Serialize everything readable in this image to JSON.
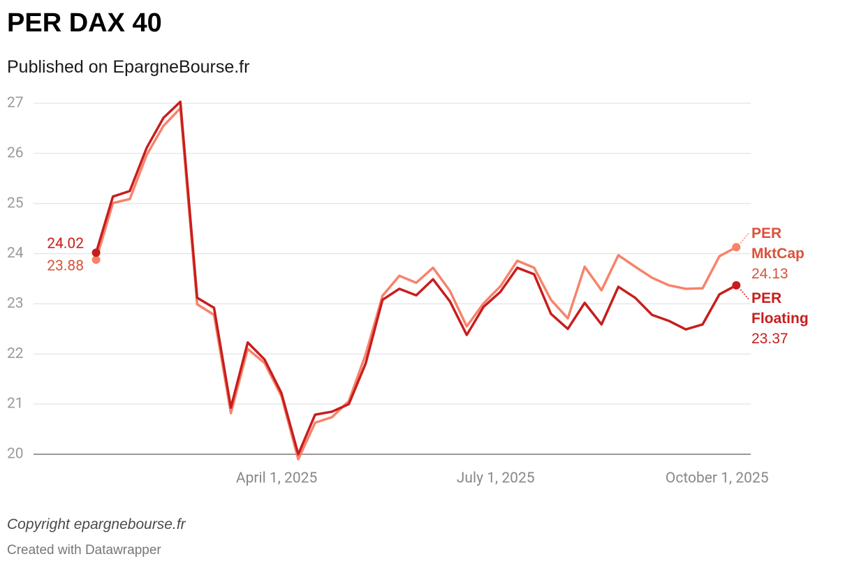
{
  "chart_data": {
    "type": "line",
    "title": "PER DAX 40",
    "subtitle": "Published on EpargneBourse.fr",
    "source": "Copyright epargnebourse.fr",
    "credit": "Created with Datawrapper",
    "x": [
      "2025-01-16",
      "2025-01-23",
      "2025-01-30",
      "2025-02-06",
      "2025-02-13",
      "2025-02-20",
      "2025-02-27",
      "2025-03-06",
      "2025-03-13",
      "2025-03-20",
      "2025-03-27",
      "2025-04-03",
      "2025-04-10",
      "2025-04-17",
      "2025-04-24",
      "2025-05-01",
      "2025-05-08",
      "2025-05-15",
      "2025-05-22",
      "2025-05-29",
      "2025-06-05",
      "2025-06-12",
      "2025-06-19",
      "2025-06-26",
      "2025-07-03",
      "2025-07-10",
      "2025-07-17",
      "2025-07-24",
      "2025-07-31",
      "2025-08-07",
      "2025-08-14",
      "2025-08-21",
      "2025-08-28",
      "2025-09-04",
      "2025-09-11",
      "2025-09-18",
      "2025-09-25",
      "2025-10-02",
      "2025-10-09"
    ],
    "series": [
      {
        "name": "PER MktCap",
        "color": "#f7836b",
        "label_color": "#d9533b",
        "values": [
          23.88,
          25.01,
          25.09,
          25.97,
          26.55,
          26.9,
          22.99,
          22.78,
          20.82,
          22.1,
          21.82,
          21.16,
          19.9,
          20.63,
          20.74,
          21.06,
          21.99,
          23.16,
          23.56,
          23.42,
          23.72,
          23.26,
          22.55,
          23.01,
          23.35,
          23.86,
          23.72,
          23.08,
          22.71,
          23.74,
          23.27,
          23.97,
          23.74,
          23.52,
          23.37,
          23.3,
          23.31,
          23.95,
          24.13
        ]
      },
      {
        "name": "PER Floating",
        "color": "#c71e1d",
        "label_color": "#c71e1d",
        "values": [
          24.02,
          25.14,
          25.25,
          26.11,
          26.71,
          27.03,
          23.12,
          22.92,
          20.93,
          22.23,
          21.89,
          21.22,
          20.0,
          20.79,
          20.85,
          21.0,
          21.81,
          23.08,
          23.3,
          23.17,
          23.49,
          23.05,
          22.38,
          22.94,
          23.24,
          23.72,
          23.59,
          22.8,
          22.5,
          23.02,
          22.59,
          23.34,
          23.12,
          22.78,
          22.66,
          22.49,
          22.59,
          23.19,
          23.37
        ]
      }
    ],
    "xlim": [
      "2024-12-21",
      "2025-10-15"
    ],
    "xticks": [
      {
        "value": "2025-04-01",
        "label": "April 1, 2025"
      },
      {
        "value": "2025-07-01",
        "label": "July 1, 2025"
      },
      {
        "value": "2025-10-01",
        "label": "October 1, 2025"
      }
    ],
    "ylim": [
      19.75,
      27.2
    ],
    "yticks": [
      20,
      21,
      22,
      23,
      24,
      25,
      26,
      27
    ],
    "grid": true
  }
}
